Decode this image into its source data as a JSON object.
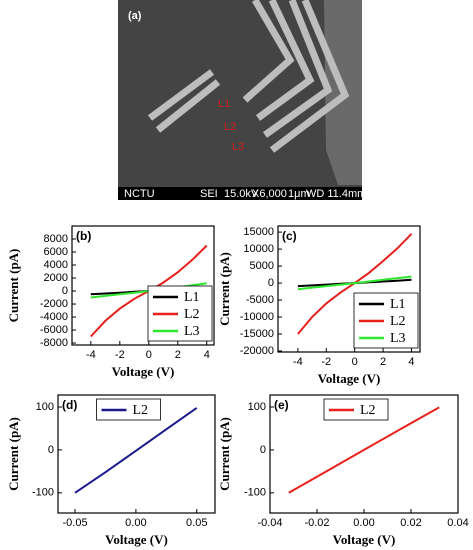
{
  "image": {
    "label": "(a)",
    "markers": [
      "L1",
      "L2",
      "L3"
    ],
    "info_bar": [
      "NCTU",
      "SEI",
      "15.0kV",
      "X6,000",
      "1μm",
      "WD 11.4mm"
    ]
  },
  "chart_data": [
    {
      "type": "line",
      "panel_label": "(b)",
      "x_label": "Voltage (V)",
      "y_label": "Current (pA)",
      "x": [
        -4,
        -3,
        -2,
        -1,
        0,
        1,
        2,
        3,
        4
      ],
      "series": [
        {
          "name": "L1",
          "color": "#000000",
          "values": [
            -500,
            -380,
            -250,
            -120,
            0,
            140,
            290,
            440,
            600
          ]
        },
        {
          "name": "L2",
          "color": "#e8201c",
          "values": [
            -7000,
            -4600,
            -2700,
            -1200,
            0,
            1300,
            2900,
            4800,
            7000
          ]
        },
        {
          "name": "L3",
          "color": "#2ee82e",
          "values": [
            -1000,
            -750,
            -500,
            -250,
            0,
            280,
            580,
            880,
            1200
          ]
        }
      ],
      "xlim": [
        -5.3,
        4.5
      ],
      "xticks": [
        -4,
        -2,
        0,
        2,
        4
      ],
      "ylim": [
        -8300,
        10000
      ],
      "yticks": [
        -8000,
        -6000,
        -4000,
        -2000,
        0,
        2000,
        4000,
        6000,
        8000
      ],
      "legend": "lower right"
    },
    {
      "type": "line",
      "panel_label": "(c)",
      "x_label": "Voltage (V)",
      "y_label": "Current (pA)",
      "x": [
        -4,
        -3,
        -2,
        -1,
        0,
        1,
        2,
        3,
        4
      ],
      "series": [
        {
          "name": "L1",
          "color": "#000000",
          "values": [
            -900,
            -680,
            -450,
            -220,
            0,
            230,
            460,
            700,
            950
          ]
        },
        {
          "name": "L2",
          "color": "#e8201c",
          "values": [
            -15000,
            -10000,
            -6000,
            -2800,
            0,
            3000,
            6500,
            10200,
            14500
          ]
        },
        {
          "name": "L3",
          "color": "#2ee82e",
          "values": [
            -1800,
            -1350,
            -900,
            -450,
            0,
            470,
            950,
            1450,
            1900
          ]
        }
      ],
      "xlim": [
        -5.4,
        4.6
      ],
      "xticks": [
        -4,
        -2,
        0,
        2,
        4
      ],
      "ylim": [
        -20300,
        16800
      ],
      "yticks": [
        -20000,
        -15000,
        -10000,
        -5000,
        0,
        5000,
        10000,
        15000
      ],
      "legend": "lower right"
    },
    {
      "type": "line",
      "panel_label": "(d)",
      "x_label": "Voltage (V)",
      "y_label": "Current (pA)",
      "x": [
        -0.05,
        -0.025,
        0,
        0.025,
        0.05
      ],
      "series": [
        {
          "name": "L2",
          "color": "#1a1a8c",
          "values": [
            -100,
            -52,
            -2,
            48,
            98
          ]
        }
      ],
      "xlim": [
        -0.064,
        0.065
      ],
      "xticks": [
        -0.05,
        {
          "value": 0,
          "label": "0.00"
        },
        0.05
      ],
      "ylim": [
        -147,
        128
      ],
      "yticks": [
        -100,
        0,
        100
      ],
      "legend": "upper center"
    },
    {
      "type": "line",
      "panel_label": "(e)",
      "x_label": "Voltage (V)",
      "y_label": "Current (pA)",
      "x": [
        -0.032,
        -0.016,
        0,
        0.016,
        0.032
      ],
      "series": [
        {
          "name": "L2",
          "color": "#e8201c",
          "values": [
            -100,
            -50,
            0,
            50,
            99
          ]
        }
      ],
      "xlim": [
        -0.04,
        0.04
      ],
      "xticks": [
        -0.04,
        -0.02,
        {
          "value": 0,
          "label": "0.00"
        },
        0.02,
        0.04
      ],
      "ylim": [
        -147,
        128
      ],
      "yticks": [
        -100,
        0,
        100
      ],
      "legend": "upper center"
    }
  ]
}
